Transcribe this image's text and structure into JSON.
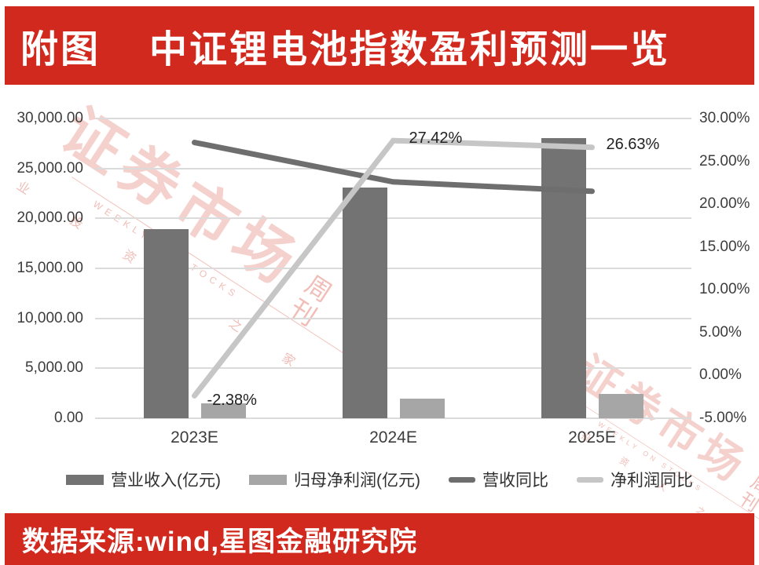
{
  "banner": {
    "title_prefix": "附图",
    "title_main": "中证锂电池指数盈利预测一览"
  },
  "source_bar": {
    "text": "数据来源:wind,星图金融研究院"
  },
  "watermark": {
    "main": "证券市场",
    "sub": "周刊",
    "english": "WEEKLY ON STOCKS",
    "small_chars": "业 投 资 人 之 家"
  },
  "colors": {
    "banner_red": "#d2291f",
    "revenue_bar": "#737373",
    "net_profit_bar": "#a6a6a6",
    "revenue_yoy_line": "#6e6e6e",
    "net_profit_yoy_line": "#c6c6c6",
    "gridline": "#dbdbdb",
    "watermark_pink": "#efb6b0"
  },
  "chart_data": {
    "type": "bar+line combo",
    "categories": [
      "2023E",
      "2024E",
      "2025E"
    ],
    "series": [
      {
        "name": "营业收入(亿元)",
        "type": "bar",
        "axis": "left",
        "color": "#737373",
        "values": [
          18900,
          23050,
          28000
        ]
      },
      {
        "name": "归母净利润(亿元)",
        "type": "bar",
        "axis": "left",
        "color": "#a6a6a6",
        "values": [
          1520,
          1940,
          2470
        ]
      },
      {
        "name": "营收同比",
        "type": "line",
        "axis": "right",
        "color": "#6e6e6e",
        "values": [
          27.2,
          22.6,
          21.5
        ]
      },
      {
        "name": "净利润同比",
        "type": "line",
        "axis": "right",
        "color": "#c6c6c6",
        "values": [
          -2.38,
          27.42,
          26.63
        ]
      }
    ],
    "data_labels": [
      {
        "text": "-2.38%",
        "series": 3,
        "point": 0
      },
      {
        "text": "27.42%",
        "series": 3,
        "point": 1
      },
      {
        "text": "26.63%",
        "series": 3,
        "point": 2
      }
    ],
    "left_axis": {
      "min": 0,
      "max": 30000,
      "ticks": [
        "30,000.00",
        "25,000.00",
        "20,000.00",
        "15,000.00",
        "10,000.00",
        "5,000.00",
        "0.00"
      ]
    },
    "right_axis": {
      "min": -5,
      "max": 30,
      "ticks": [
        "30.00%",
        "25.00%",
        "20.00%",
        "15.00%",
        "10.00%",
        "5.00%",
        "0.00%",
        "-5.00%"
      ]
    },
    "legend": [
      "营业收入(亿元)",
      "归母净利润(亿元)",
      "营收同比",
      "净利润同比"
    ],
    "legend_position": "bottom",
    "grid": true
  }
}
